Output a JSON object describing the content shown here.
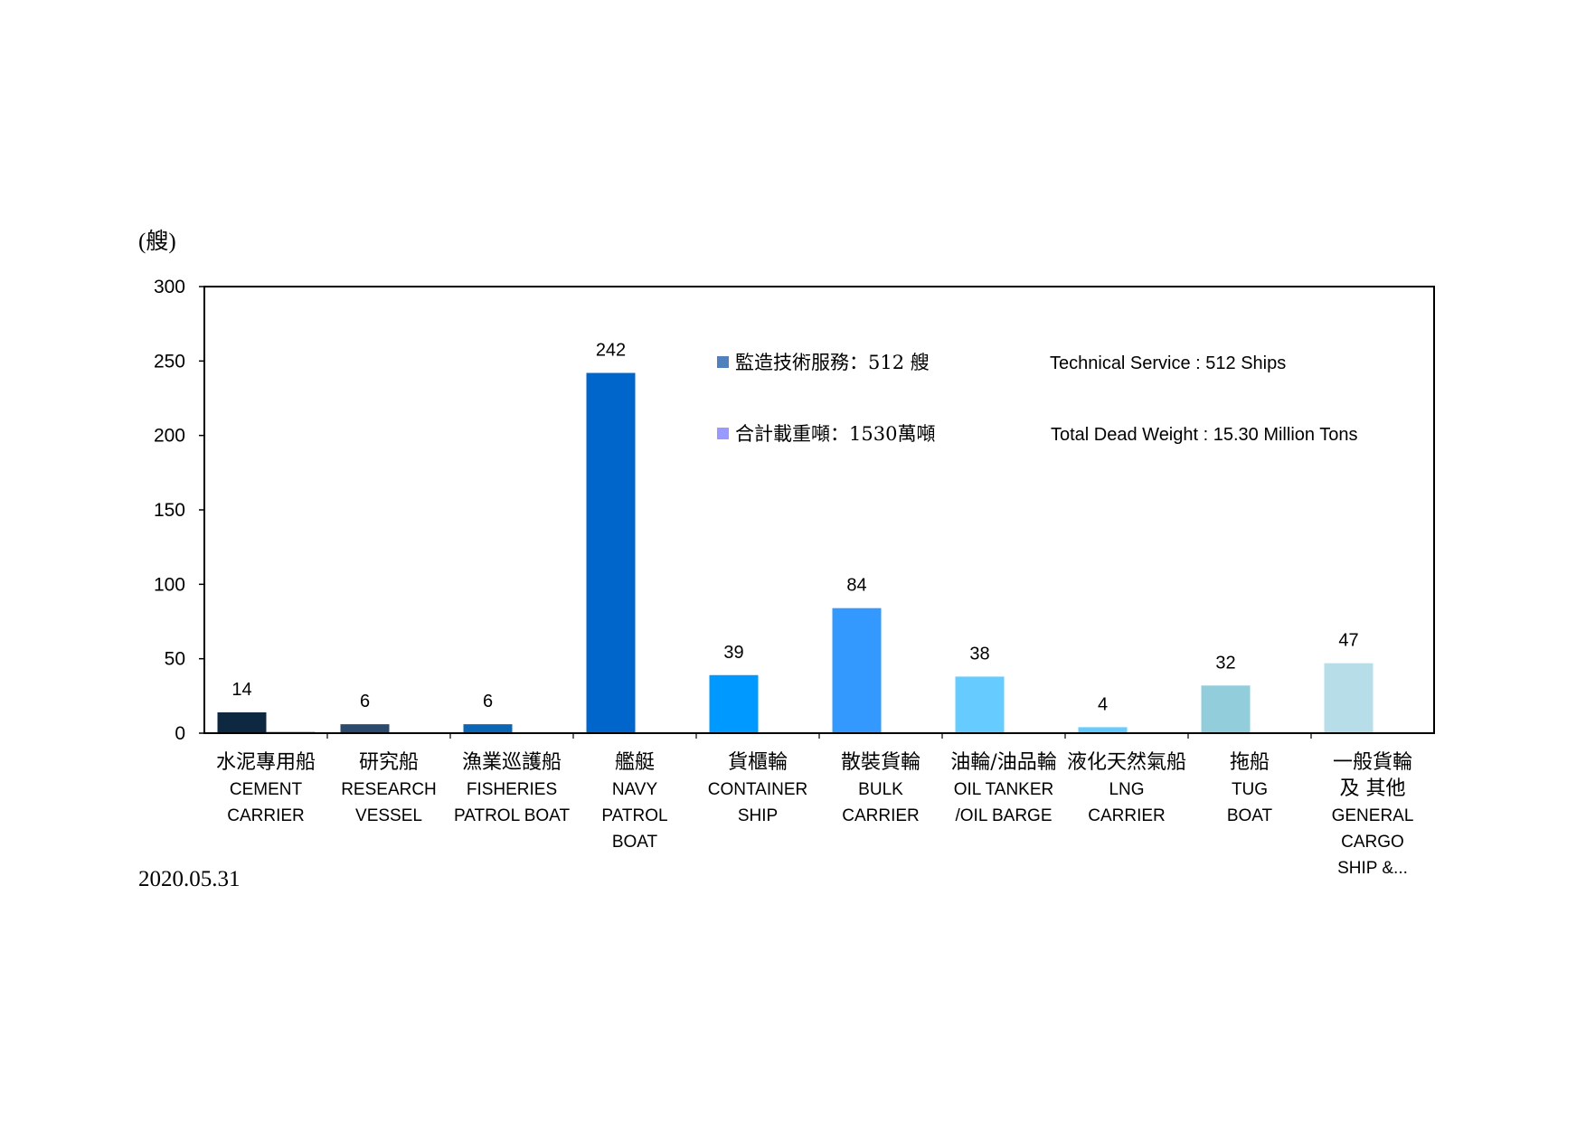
{
  "chart_data": {
    "type": "bar",
    "y_unit_label": "(艘)",
    "ylim": [
      0,
      300
    ],
    "yticks": [
      0,
      50,
      100,
      150,
      200,
      250,
      300
    ],
    "grid": false,
    "legend_position": "top-right inside plot",
    "categories": [
      [
        "水泥專用船",
        "CEMENT",
        "CARRIER"
      ],
      [
        "研究船",
        "RESEARCH",
        "VESSEL"
      ],
      [
        "漁業巡護船",
        "FISHERIES",
        "PATROL BOAT"
      ],
      [
        "艦艇",
        "NAVY",
        "PATROL",
        "BOAT"
      ],
      [
        "貨櫃輪",
        "CONTAINER",
        "SHIP"
      ],
      [
        "散裝貨輪",
        "BULK",
        "CARRIER"
      ],
      [
        "油輪/油品輪",
        "OIL TANKER",
        "/OIL BARGE"
      ],
      [
        "液化天然氣船",
        "LNG",
        "CARRIER"
      ],
      [
        "拖船",
        "TUG",
        "BOAT"
      ],
      [
        "一般貨輪",
        "及 其他",
        "GENERAL",
        "CARGO",
        "SHIP &..."
      ]
    ],
    "series": [
      {
        "name": "監造技術服務：512 艘",
        "name_en": "Technical Service : 512 Ships",
        "legend_color": "#4f81bd",
        "values": [
          14,
          6,
          6,
          242,
          39,
          84,
          38,
          4,
          32,
          47
        ],
        "bar_colors": [
          "#0e2841",
          "#2c4a6e",
          "#0b67b5",
          "#0066cc",
          "#0099ff",
          "#3399ff",
          "#66ccff",
          "#66ccff",
          "#92cddc",
          "#b7dee8"
        ],
        "data_labels": true
      },
      {
        "name": "合計載重噸：1530萬噸",
        "name_en": "Total Dead Weight : 15.30 Million Tons",
        "legend_color": "#9999ff",
        "values": [
          1,
          0,
          0,
          0,
          0,
          0,
          0,
          0,
          0,
          0
        ],
        "bar_colors": [
          "#9999ff",
          "#9999ff",
          "#9999ff",
          "#9999ff",
          "#9999ff",
          "#9999ff",
          "#9999ff",
          "#9999ff",
          "#9999ff",
          "#9999ff"
        ],
        "data_labels": false
      }
    ],
    "footnote": "2020.05.31"
  }
}
